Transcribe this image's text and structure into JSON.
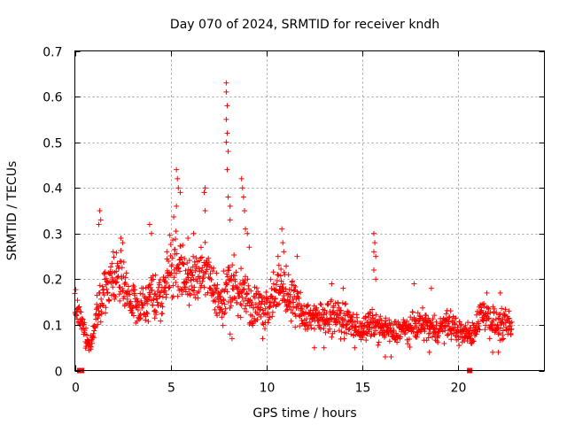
{
  "chart_data": {
    "type": "scatter",
    "title": "Day 070 of 2024, SRMTID for receiver kndh",
    "xlabel": "GPS time / hours",
    "ylabel": "SRMTID / TECUs",
    "xlim": [
      0,
      24.5
    ],
    "ylim": [
      0,
      0.7
    ],
    "x_ticks": [
      0,
      5,
      10,
      15,
      20
    ],
    "y_ticks": [
      0,
      0.1,
      0.2,
      0.3,
      0.4,
      0.5,
      0.6,
      0.7
    ],
    "x_tick_labels": [
      "0",
      "5",
      "10",
      "15",
      "20"
    ],
    "y_tick_labels": [
      "0",
      "0.1",
      "0.2",
      "0.3",
      "0.4",
      "0.5",
      "0.6",
      "0.7"
    ],
    "grid": true,
    "marker": "+",
    "color": "#ff0000",
    "zero_markers": [
      0.25,
      0.35,
      20.6
    ],
    "trend": [
      [
        0.0,
        0.15
      ],
      [
        0.3,
        0.12
      ],
      [
        0.6,
        0.07
      ],
      [
        0.8,
        0.05
      ],
      [
        1.0,
        0.09
      ],
      [
        1.3,
        0.15
      ],
      [
        1.6,
        0.18
      ],
      [
        1.9,
        0.2
      ],
      [
        2.2,
        0.21
      ],
      [
        2.5,
        0.2
      ],
      [
        2.8,
        0.16
      ],
      [
        3.1,
        0.15
      ],
      [
        3.4,
        0.14
      ],
      [
        3.7,
        0.15
      ],
      [
        4.0,
        0.17
      ],
      [
        4.3,
        0.15
      ],
      [
        4.6,
        0.17
      ],
      [
        4.9,
        0.21
      ],
      [
        5.2,
        0.24
      ],
      [
        5.5,
        0.23
      ],
      [
        5.8,
        0.19
      ],
      [
        6.1,
        0.2
      ],
      [
        6.4,
        0.21
      ],
      [
        6.7,
        0.22
      ],
      [
        7.0,
        0.2
      ],
      [
        7.3,
        0.17
      ],
      [
        7.6,
        0.15
      ],
      [
        7.9,
        0.17
      ],
      [
        8.2,
        0.19
      ],
      [
        8.5,
        0.17
      ],
      [
        8.8,
        0.18
      ],
      [
        9.1,
        0.15
      ],
      [
        9.4,
        0.14
      ],
      [
        9.7,
        0.14
      ],
      [
        10.0,
        0.14
      ],
      [
        10.3,
        0.16
      ],
      [
        10.6,
        0.17
      ],
      [
        10.9,
        0.18
      ],
      [
        11.2,
        0.16
      ],
      [
        11.5,
        0.15
      ],
      [
        11.8,
        0.13
      ],
      [
        12.1,
        0.12
      ],
      [
        12.4,
        0.12
      ],
      [
        12.7,
        0.11
      ],
      [
        13.0,
        0.12
      ],
      [
        13.3,
        0.12
      ],
      [
        13.6,
        0.12
      ],
      [
        13.9,
        0.11
      ],
      [
        14.2,
        0.11
      ],
      [
        14.5,
        0.1
      ],
      [
        14.8,
        0.09
      ],
      [
        15.1,
        0.09
      ],
      [
        15.4,
        0.1
      ],
      [
        15.7,
        0.1
      ],
      [
        16.0,
        0.09
      ],
      [
        16.3,
        0.09
      ],
      [
        16.6,
        0.08
      ],
      [
        16.9,
        0.09
      ],
      [
        17.2,
        0.09
      ],
      [
        17.5,
        0.09
      ],
      [
        17.8,
        0.1
      ],
      [
        18.1,
        0.1
      ],
      [
        18.4,
        0.1
      ],
      [
        18.7,
        0.09
      ],
      [
        19.0,
        0.09
      ],
      [
        19.3,
        0.1
      ],
      [
        19.6,
        0.1
      ],
      [
        19.9,
        0.09
      ],
      [
        20.2,
        0.08
      ],
      [
        20.5,
        0.08
      ],
      [
        20.8,
        0.08
      ],
      [
        21.1,
        0.12
      ],
      [
        21.4,
        0.13
      ],
      [
        21.7,
        0.11
      ],
      [
        22.0,
        0.1
      ],
      [
        22.3,
        0.1
      ],
      [
        22.6,
        0.1
      ],
      [
        22.8,
        0.09
      ]
    ],
    "spikes": [
      [
        1.3,
        0.35
      ],
      [
        1.35,
        0.33
      ],
      [
        1.25,
        0.32
      ],
      [
        2.4,
        0.29
      ],
      [
        2.5,
        0.28
      ],
      [
        3.9,
        0.32
      ],
      [
        4.0,
        0.3
      ],
      [
        5.3,
        0.44
      ],
      [
        5.35,
        0.42
      ],
      [
        5.4,
        0.4
      ],
      [
        5.5,
        0.39
      ],
      [
        5.3,
        0.36
      ],
      [
        6.8,
        0.4
      ],
      [
        6.75,
        0.39
      ],
      [
        6.8,
        0.35
      ],
      [
        7.9,
        0.63
      ],
      [
        7.9,
        0.61
      ],
      [
        7.95,
        0.58
      ],
      [
        7.9,
        0.55
      ],
      [
        7.95,
        0.52
      ],
      [
        7.9,
        0.5
      ],
      [
        8.0,
        0.48
      ],
      [
        7.95,
        0.44
      ],
      [
        8.0,
        0.38
      ],
      [
        8.1,
        0.36
      ],
      [
        8.1,
        0.33
      ],
      [
        8.7,
        0.42
      ],
      [
        8.75,
        0.4
      ],
      [
        8.8,
        0.38
      ],
      [
        8.85,
        0.35
      ],
      [
        8.9,
        0.31
      ],
      [
        9.0,
        0.3
      ],
      [
        10.8,
        0.31
      ],
      [
        10.85,
        0.28
      ],
      [
        10.9,
        0.26
      ],
      [
        11.6,
        0.25
      ],
      [
        15.6,
        0.3
      ],
      [
        15.65,
        0.28
      ],
      [
        15.6,
        0.26
      ],
      [
        15.7,
        0.25
      ],
      [
        15.6,
        0.22
      ],
      [
        15.7,
        0.2
      ],
      [
        8.1,
        0.08
      ],
      [
        8.2,
        0.07
      ],
      [
        9.8,
        0.07
      ],
      [
        12.5,
        0.05
      ],
      [
        13.0,
        0.05
      ],
      [
        14.6,
        0.05
      ],
      [
        16.2,
        0.03
      ],
      [
        16.5,
        0.03
      ],
      [
        18.5,
        0.04
      ],
      [
        21.8,
        0.04
      ],
      [
        22.1,
        0.04
      ],
      [
        5.9,
        0.29
      ],
      [
        6.2,
        0.3
      ],
      [
        2.0,
        0.26
      ],
      [
        4.8,
        0.26
      ],
      [
        9.1,
        0.27
      ],
      [
        10.6,
        0.25
      ],
      [
        13.4,
        0.19
      ],
      [
        14.0,
        0.18
      ],
      [
        17.7,
        0.19
      ],
      [
        18.6,
        0.18
      ],
      [
        21.5,
        0.17
      ],
      [
        22.2,
        0.17
      ]
    ]
  }
}
